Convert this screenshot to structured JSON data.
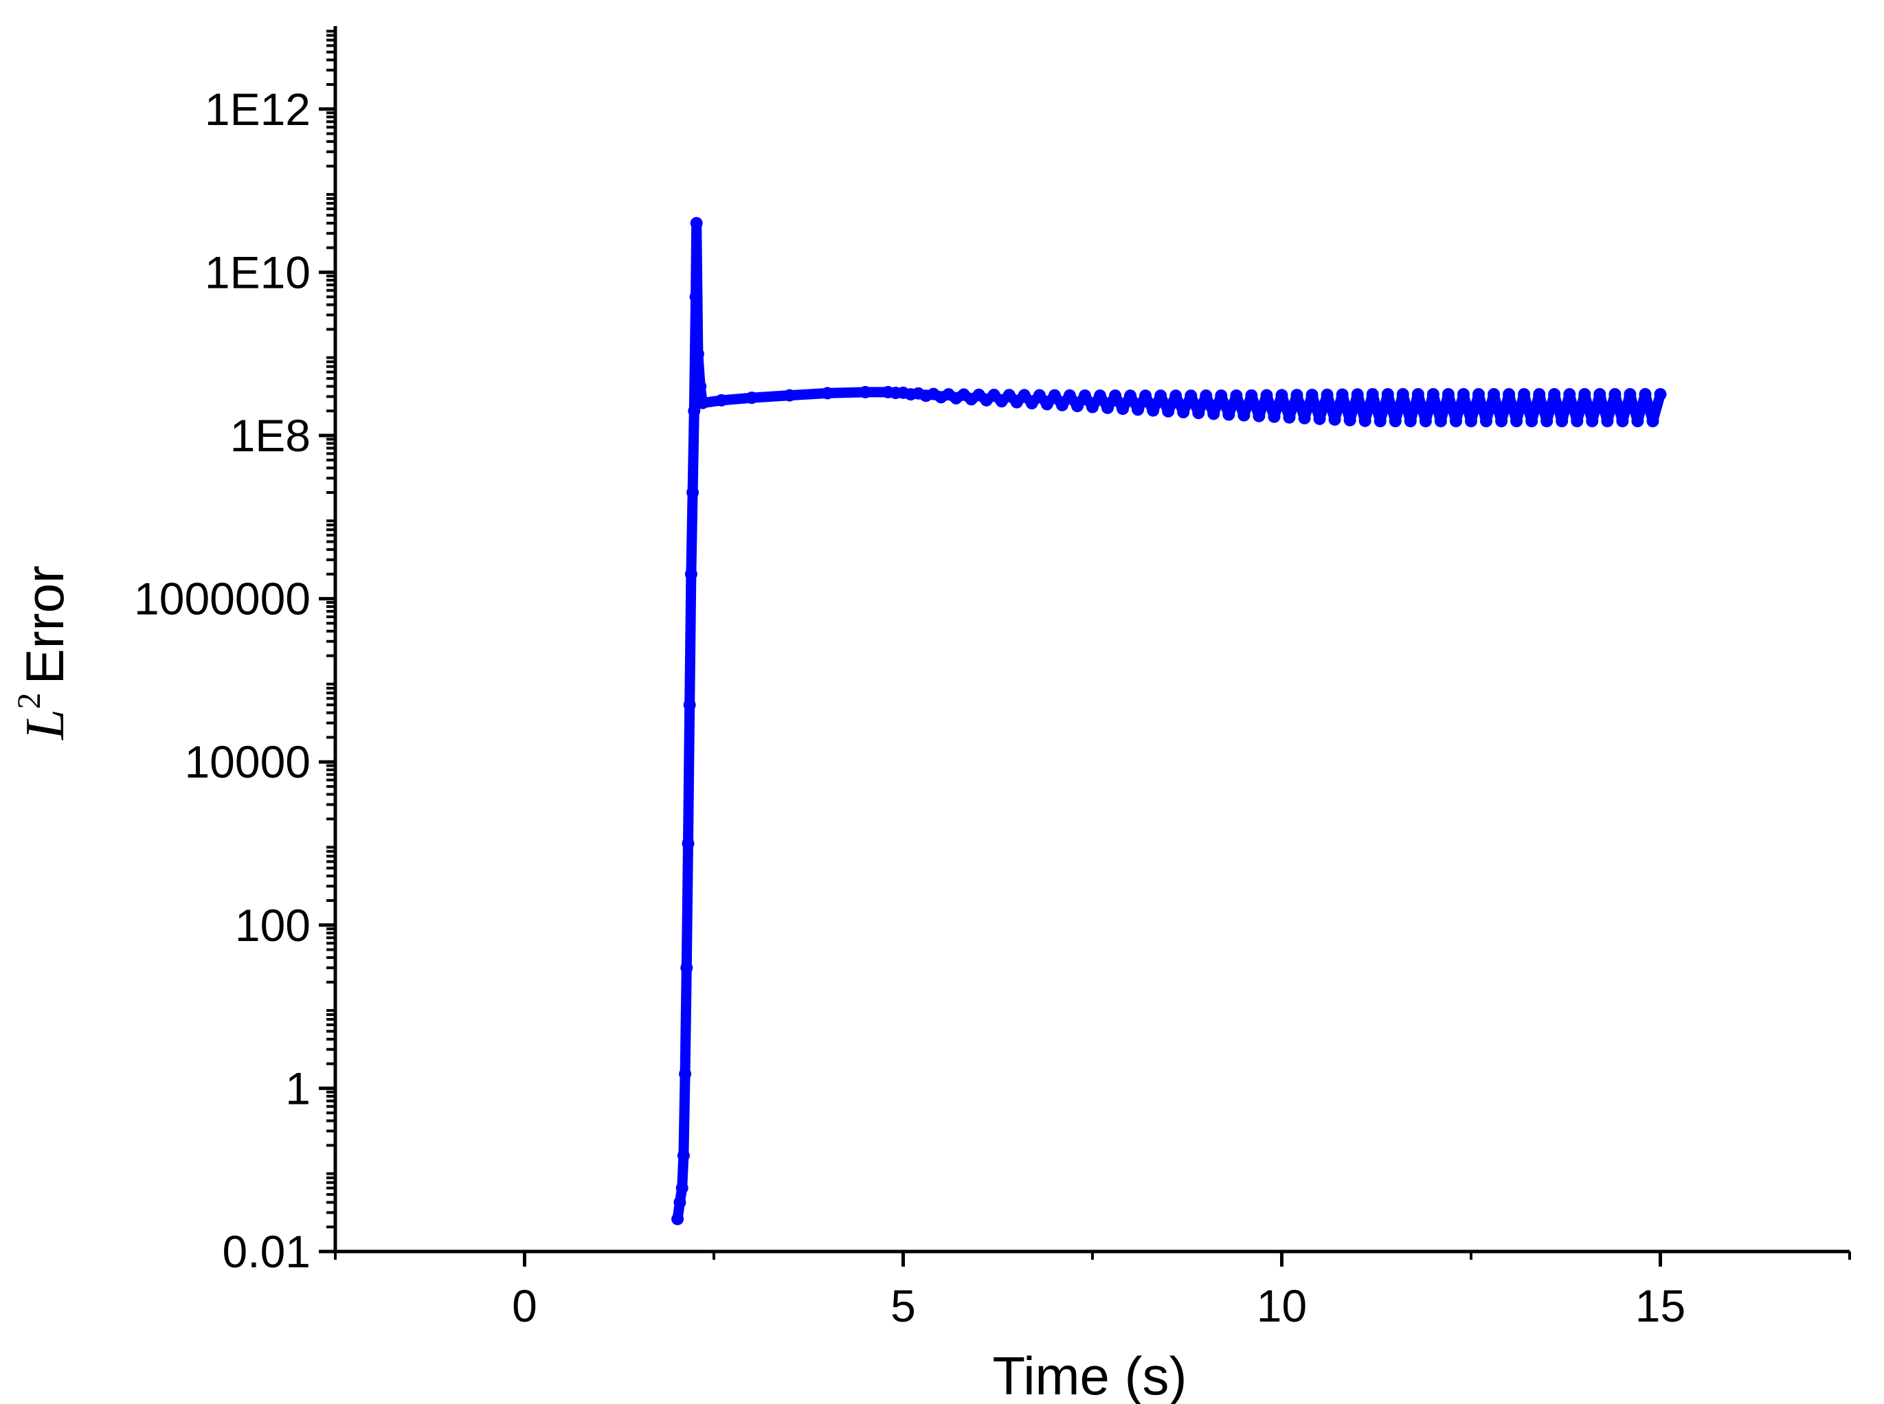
{
  "chart_data": {
    "type": "line",
    "title": "",
    "xlabel": "Time (s)",
    "ylabel_parts": {
      "symbol": "L",
      "superscript": "2",
      "text": "Error"
    },
    "x_axis": {
      "range": [
        -2.5,
        17.5
      ],
      "ticks": [
        0,
        5,
        10,
        15
      ],
      "tick_labels": [
        "0",
        "5",
        "10",
        "15"
      ],
      "minor_step": 2.5
    },
    "y_axis": {
      "scale": "log",
      "range": [
        0.01,
        10000000000000.0
      ],
      "ticks": [
        0.01,
        1,
        100,
        10000,
        1000000,
        100000000.0,
        10000000000.0,
        1000000000000.0
      ],
      "tick_labels": [
        "0.01",
        "1",
        "100",
        "10000",
        "1000000",
        "1E8",
        "1E10",
        "1E12"
      ]
    },
    "grid": false,
    "legend": "none",
    "series": [
      {
        "color": "#0000ff",
        "points": [
          [
            2.02,
            0.025
          ],
          [
            2.05,
            0.04
          ],
          [
            2.08,
            0.06
          ],
          [
            2.1,
            0.15
          ],
          [
            2.12,
            1.5
          ],
          [
            2.14,
            30
          ],
          [
            2.16,
            1000
          ],
          [
            2.18,
            50000
          ],
          [
            2.2,
            2000000
          ],
          [
            2.22,
            20000000.0
          ],
          [
            2.24,
            200000000.0
          ],
          [
            2.26,
            5000000000.0
          ],
          [
            2.27,
            40000000000.0
          ],
          [
            2.29,
            1000000000.0
          ],
          [
            2.32,
            400000000.0
          ],
          [
            2.35,
            250000000.0
          ],
          [
            2.6,
            270000000.0
          ],
          [
            3.0,
            290000000.0
          ],
          [
            3.5,
            310000000.0
          ],
          [
            4.0,
            330000000.0
          ],
          [
            4.5,
            340000000.0
          ],
          [
            4.8,
            340000000.0
          ],
          [
            5.5,
            320000000.0
          ],
          [
            6.5,
            310000000.0
          ],
          [
            7.5,
            300000000.0
          ],
          [
            8.5,
            290000000.0
          ],
          [
            9.5,
            280000000.0
          ],
          [
            10.5,
            275000000.0
          ],
          [
            11.5,
            270000000.0
          ],
          [
            12.5,
            270000000.0
          ],
          [
            13.5,
            265000000.0
          ],
          [
            14.5,
            265000000.0
          ],
          [
            15.0,
            260000000.0
          ]
        ],
        "oscillation": {
          "x_start": 4.8,
          "x_end": 15.0,
          "period": 0.2,
          "y_max_end": 320000000.0,
          "y_min_end": 150000000.0
        }
      }
    ]
  }
}
